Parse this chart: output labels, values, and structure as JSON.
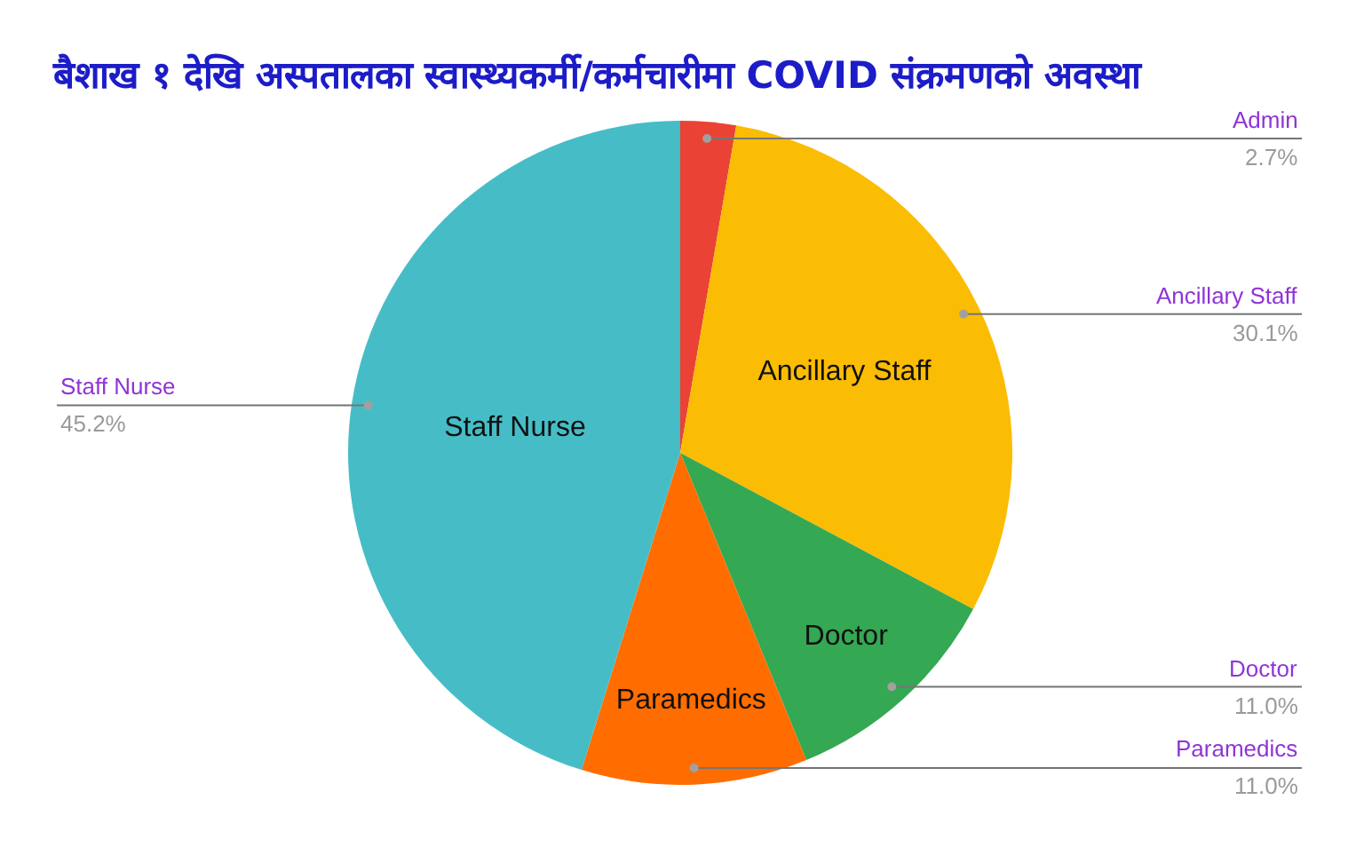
{
  "chart_data": {
    "type": "pie",
    "title": "बैशाख १ देखि अस्पतालका स्वास्थ्यकर्मी/कर्मचारीमा COVID संक्रमणको अवस्था",
    "categories": [
      "Admin",
      "Ancillary Staff",
      "Doctor",
      "Paramedics",
      "Staff Nurse"
    ],
    "values": [
      2.7,
      30.1,
      11.0,
      11.0,
      45.2
    ],
    "colors": [
      "#ea4335",
      "#fbbc04",
      "#34a853",
      "#ff6d01",
      "#46bdc6"
    ],
    "value_labels": [
      "2.7%",
      "30.1%",
      "11.0%",
      "11.0%",
      "45.2%"
    ]
  }
}
